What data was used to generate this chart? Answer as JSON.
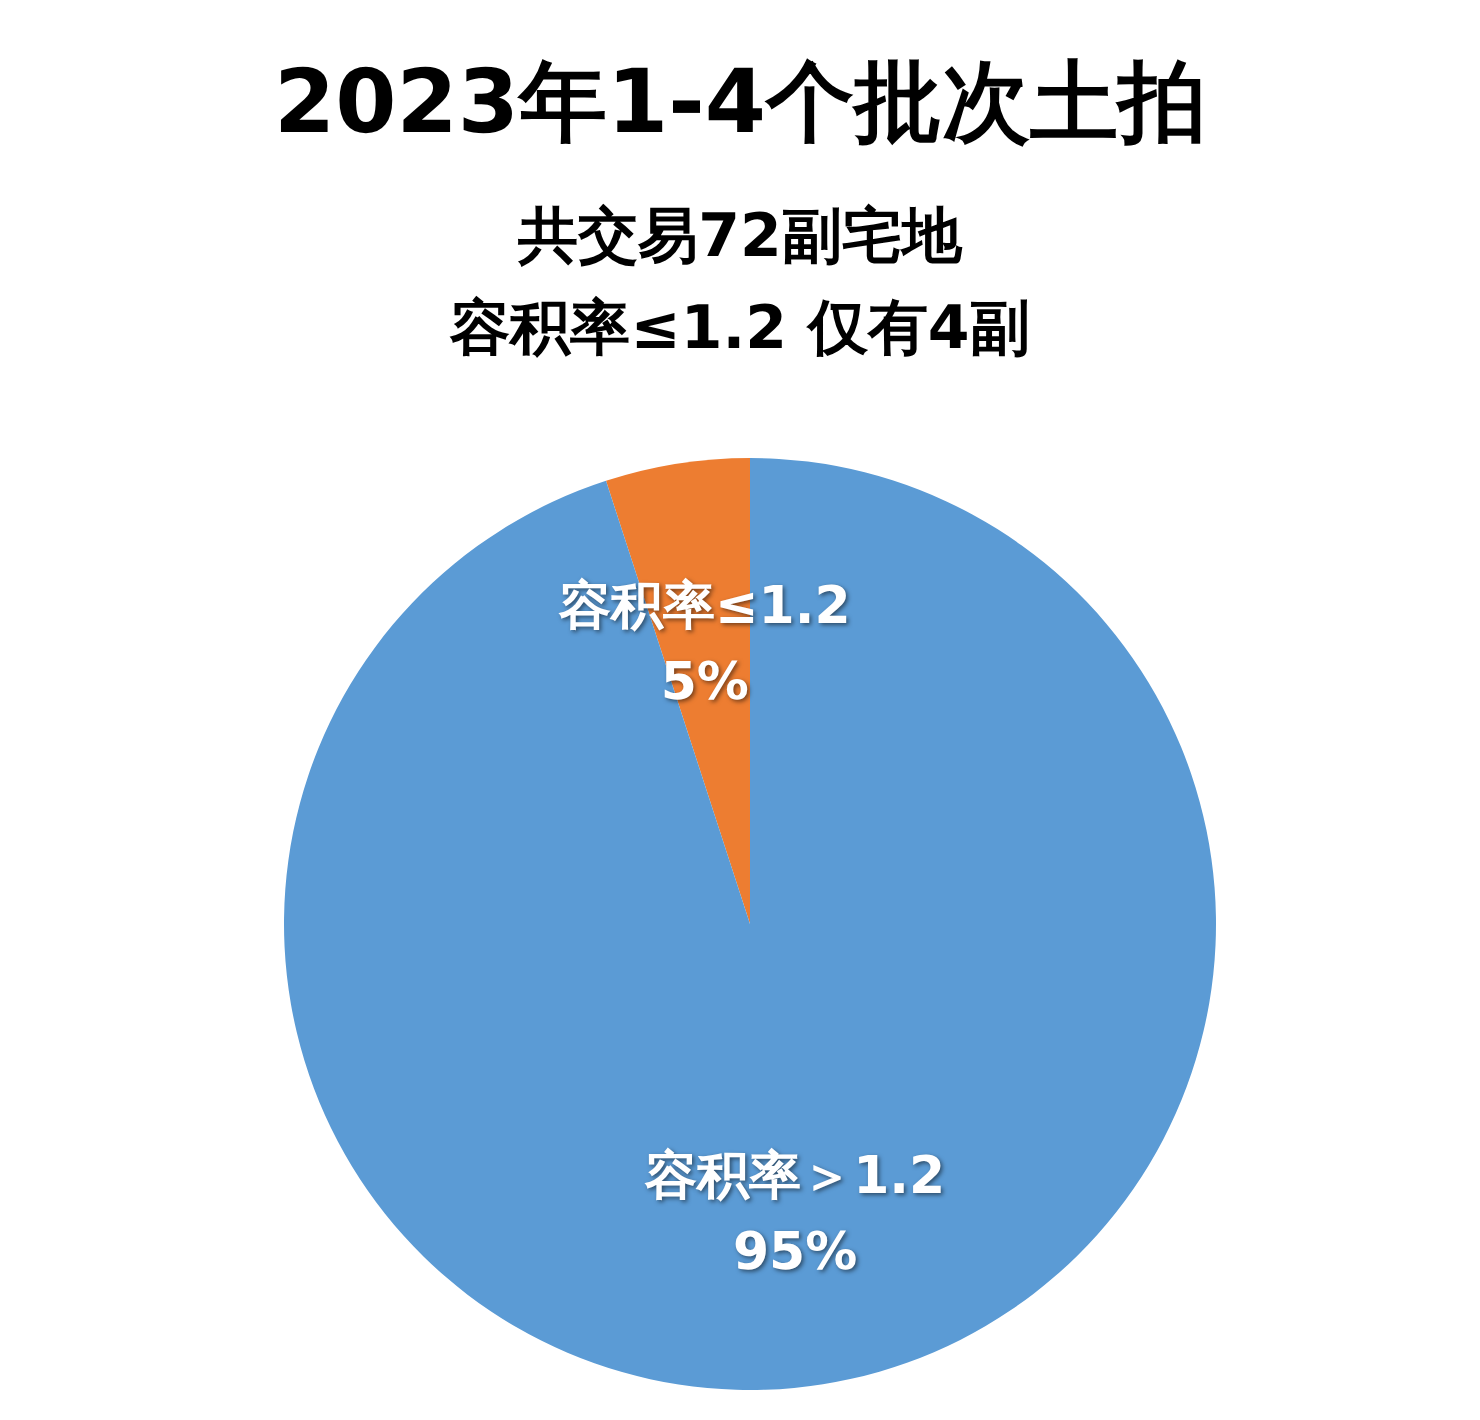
{
  "chart_data": {
    "type": "pie",
    "title": "2023年1-4个批次土拍",
    "subtitle": "共交易72副宅地",
    "annotations": [
      "容积率≤1.2 仅有4副"
    ],
    "categories": [
      "容积率≤1.2",
      "容积率＞1.2"
    ],
    "values": [
      5,
      95
    ],
    "value_labels": [
      "5%",
      "95%"
    ],
    "colors": [
      "#ed7d31",
      "#5b9bd5"
    ],
    "legend": false
  }
}
